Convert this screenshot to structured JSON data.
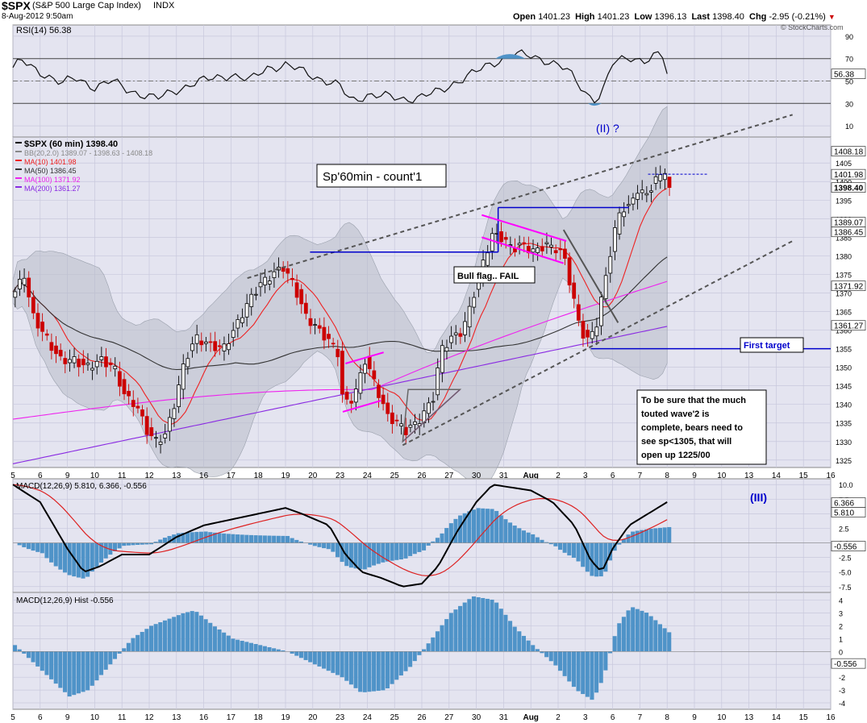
{
  "header": {
    "symbol": "$SPX",
    "name": "(S&P 500 Large Cap Index)",
    "exchange": "INDX",
    "datetime": "8-Aug-2012 9:50am",
    "open_label": "Open",
    "open": "1401.23",
    "high_label": "High",
    "high": "1401.23",
    "low_label": "Low",
    "low": "1396.13",
    "last_label": "Last",
    "last": "1398.40",
    "chg_label": "Chg",
    "chg": "-2.95 (-0.21%)",
    "watermark": "© StockCharts.com"
  },
  "colors": {
    "panel_bg": "#e4e4f0",
    "grid": "#c8c8dc",
    "up_candle": "#000000",
    "down_candle": "#cc0000",
    "ma10": "#ee2222",
    "ma50": "#333333",
    "ma100": "#ee22ee",
    "ma200": "#8a2be2",
    "bb_fill": "#b8bcc8",
    "macd_hist": "#4f93c8",
    "annotation_blue": "#0000cc",
    "annotation_magenta": "#ff00ff"
  },
  "chart_data": [
    {
      "type": "line",
      "panel": "rsi",
      "legend": "RSI(14) 56.38",
      "ylim": [
        0,
        100
      ],
      "y_ticks": [
        "90",
        "70",
        "50",
        "30",
        "10"
      ],
      "y_tick_values": [
        90,
        70,
        50,
        30,
        10
      ],
      "reference_lines": [
        70,
        50,
        30
      ],
      "current_value_label": "56.38",
      "current_value": 56.38
    },
    {
      "type": "candlestick",
      "panel": "price",
      "legend": [
        {
          "label": "$SPX (60 min) 1398.40",
          "color": "#000000"
        },
        {
          "label": "BB(20,2.0) 1389.07 - 1398.63 - 1408.18",
          "color": "#888888"
        },
        {
          "label": "MA(10) 1401.98",
          "color": "#ee2222"
        },
        {
          "label": "MA(50) 1386.45",
          "color": "#333333"
        },
        {
          "label": "MA(100) 1371.92",
          "color": "#ee22ee"
        },
        {
          "label": "MA(200) 1361.27",
          "color": "#8a2be2"
        }
      ],
      "ylim": [
        1323,
        1412
      ],
      "y_ticks": [
        "1405",
        "1400",
        "1395",
        "1390",
        "1385",
        "1380",
        "1375",
        "1370",
        "1365",
        "1360",
        "1355",
        "1350",
        "1345",
        "1340",
        "1335",
        "1330",
        "1325"
      ],
      "y_tick_values": [
        1405,
        1400,
        1395,
        1390,
        1385,
        1380,
        1375,
        1370,
        1365,
        1360,
        1355,
        1350,
        1345,
        1340,
        1335,
        1330,
        1325
      ],
      "right_labels": [
        {
          "text": "1408.18",
          "value": 1408.18
        },
        {
          "text": "1401.98",
          "value": 1401.98
        },
        {
          "text": "1398.40",
          "value": 1398.4
        },
        {
          "text": "1389.07",
          "value": 1389.07
        },
        {
          "text": "1386.45",
          "value": 1386.45
        },
        {
          "text": "1371.92",
          "value": 1371.92
        },
        {
          "text": "1361.27",
          "value": 1361.27
        }
      ],
      "x_ticks": [
        "5",
        "6",
        "9",
        "10",
        "11",
        "12",
        "13",
        "16",
        "17",
        "18",
        "19",
        "20",
        "23",
        "24",
        "25",
        "26",
        "27",
        "30",
        "31",
        "Aug",
        "2",
        "3",
        "6",
        "7",
        "8",
        "9",
        "10",
        "13",
        "14",
        "15",
        "16"
      ],
      "series": [
        {
          "name": "MA(10)",
          "current": 1401.98
        },
        {
          "name": "MA(50)",
          "current": 1386.45
        },
        {
          "name": "MA(100)",
          "current": 1371.92
        },
        {
          "name": "MA(200)",
          "current": 1361.27
        }
      ],
      "annotations": {
        "count_box": "Sp'60min - count'1",
        "wave2": "(II) ?",
        "bull_flag": "Bull flag.. FAIL",
        "first_target": "First target",
        "first_target_level": 1355,
        "note": [
          "To be sure that the much",
          "touted wave'2 is",
          "complete, bears need to",
          "see sp<1305, that will",
          "open up 1225/00"
        ]
      }
    },
    {
      "type": "line",
      "panel": "macd",
      "legend": "MACD(12,26,9) 5.810, 6.366, -0.556",
      "ylim": [
        -8.5,
        11
      ],
      "y_ticks": [
        "10.0",
        "7.5",
        "5.0",
        "2.5",
        "0.0",
        "-2.5",
        "-5.0",
        "-7.5"
      ],
      "y_tick_values": [
        10,
        7.5,
        5,
        2.5,
        0,
        -2.5,
        -5,
        -7.5
      ],
      "right_labels": [
        {
          "text": "6.366",
          "value": 6.366
        },
        {
          "text": "5.810",
          "value": 5.81
        },
        {
          "text": "-0.556",
          "value": -0.556
        }
      ],
      "annotation": "(III)"
    },
    {
      "type": "bar",
      "panel": "macd_hist",
      "legend": "MACD(12,26,9) Hist -0.556",
      "ylim": [
        -4.5,
        4.6
      ],
      "y_ticks": [
        "4",
        "3",
        "2",
        "1",
        "0",
        "-1",
        "-2",
        "-3",
        "-4"
      ],
      "y_tick_values": [
        4,
        3,
        2,
        1,
        0,
        -1,
        -2,
        -3,
        -4
      ],
      "right_labels": [
        {
          "text": "-0.556",
          "value": -0.556
        }
      ]
    }
  ]
}
